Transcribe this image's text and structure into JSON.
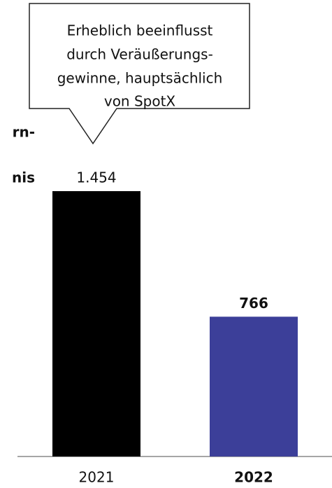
{
  "chart_data": {
    "type": "bar",
    "title_lines": [
      "rn-",
      "nis"
    ],
    "annotation_lines": [
      "Erheblich beeinflusst",
      "durch Veräußerungs-",
      "gewinne, hauptsächlich",
      "von SpotX"
    ],
    "categories": [
      "2021",
      "2022"
    ],
    "values": [
      1454,
      766
    ],
    "value_labels": [
      "1.454",
      "766"
    ],
    "colors": [
      "#000000",
      "#3c3f99"
    ],
    "bold_index": 1
  }
}
